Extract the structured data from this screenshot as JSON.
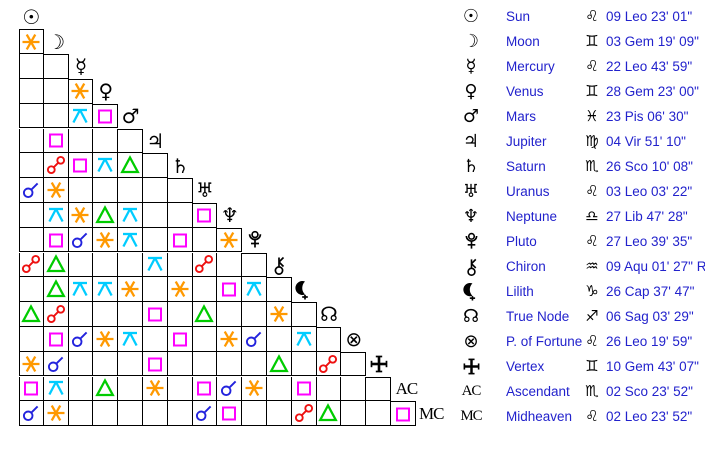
{
  "app": {
    "description": "Natal chart aspectarian (aspect grid) with planetary positions table"
  },
  "colors": {
    "background": "#ffffff",
    "grid_line": "#000000",
    "glyph_black": "#000000",
    "link_text": "#2222cc",
    "aspects": {
      "conjunction": "#2222dd",
      "opposition": "#ee1111",
      "square": "#ff00ff",
      "trine": "#00cc00",
      "sextile": "#ff9900",
      "quincunx": "#00ccff"
    }
  },
  "chart_data": {
    "type": "table",
    "title": "Aspect grid and planetary positions",
    "legend_position": "right",
    "bodies": [
      {
        "name": "Sun",
        "glyph": "☉",
        "sign": "Leo",
        "sign_glyph": "♌",
        "position": "09 Leo 23' 01\""
      },
      {
        "name": "Moon",
        "glyph": "☽",
        "sign": "Gem",
        "sign_glyph": "♊",
        "position": "03 Gem 19' 09\""
      },
      {
        "name": "Mercury",
        "glyph": "☿",
        "sign": "Leo",
        "sign_glyph": "♌",
        "position": "22 Leo 43' 59\""
      },
      {
        "name": "Venus",
        "glyph": "♀",
        "sign": "Gem",
        "sign_glyph": "♊",
        "position": "28 Gem 23' 00\""
      },
      {
        "name": "Mars",
        "glyph": "♂",
        "sign": "Pis",
        "sign_glyph": "♓",
        "position": "23 Pis 06' 30\""
      },
      {
        "name": "Jupiter",
        "glyph": "♃",
        "sign": "Vir",
        "sign_glyph": "♍",
        "position": "04 Vir 51' 10\""
      },
      {
        "name": "Saturn",
        "glyph": "♄",
        "sign": "Sco",
        "sign_glyph": "♏",
        "position": "26 Sco 10' 08\""
      },
      {
        "name": "Uranus",
        "glyph": "♅",
        "sign": "Leo",
        "sign_glyph": "♌",
        "position": "03 Leo 03' 22\""
      },
      {
        "name": "Neptune",
        "glyph": "♆",
        "sign": "Lib",
        "sign_glyph": "♎",
        "position": "27 Lib 47' 28\""
      },
      {
        "name": "Pluto",
        "glyph": "svg:pluto",
        "sign": "Leo",
        "sign_glyph": "♌",
        "position": "27 Leo 39' 35\""
      },
      {
        "name": "Chiron",
        "glyph": "svg:chiron",
        "sign": "Aqu",
        "sign_glyph": "♒",
        "position": "09 Aqu 01' 27\" R"
      },
      {
        "name": "Lilith",
        "glyph": "svg:lilith",
        "sign": "Cap",
        "sign_glyph": "♑",
        "position": "26 Cap 37' 47\""
      },
      {
        "name": "True Node",
        "glyph": "☊",
        "sign": "Sag",
        "sign_glyph": "♐",
        "position": "06 Sag 03' 29\""
      },
      {
        "name": "P. of Fortune",
        "glyph": "⊗",
        "sign": "Leo",
        "sign_glyph": "♌",
        "position": "26 Leo 19' 59\""
      },
      {
        "name": "Vertex",
        "glyph": "svg:vertex",
        "sign": "Gem",
        "sign_glyph": "♊",
        "position": "10 Gem 43' 07\""
      },
      {
        "name": "Ascendant",
        "glyph": "AC",
        "sign": "Sco",
        "sign_glyph": "♏",
        "position": "02 Sco 23' 52\""
      },
      {
        "name": "Midheaven",
        "glyph": "MC",
        "sign": "Leo",
        "sign_glyph": "♌",
        "position": "02 Leo 23' 52\""
      }
    ],
    "aspects": [
      {
        "row": 1,
        "col": 0,
        "aspect": "sextile"
      },
      {
        "row": 3,
        "col": 2,
        "aspect": "sextile"
      },
      {
        "row": 4,
        "col": 2,
        "aspect": "quincunx"
      },
      {
        "row": 4,
        "col": 3,
        "aspect": "square"
      },
      {
        "row": 5,
        "col": 1,
        "aspect": "square"
      },
      {
        "row": 6,
        "col": 1,
        "aspect": "opposition"
      },
      {
        "row": 6,
        "col": 2,
        "aspect": "square"
      },
      {
        "row": 6,
        "col": 3,
        "aspect": "quincunx"
      },
      {
        "row": 6,
        "col": 4,
        "aspect": "trine"
      },
      {
        "row": 7,
        "col": 0,
        "aspect": "conjunction"
      },
      {
        "row": 7,
        "col": 1,
        "aspect": "sextile"
      },
      {
        "row": 8,
        "col": 1,
        "aspect": "quincunx"
      },
      {
        "row": 8,
        "col": 2,
        "aspect": "sextile"
      },
      {
        "row": 8,
        "col": 3,
        "aspect": "trine"
      },
      {
        "row": 8,
        "col": 4,
        "aspect": "quincunx"
      },
      {
        "row": 8,
        "col": 7,
        "aspect": "square"
      },
      {
        "row": 9,
        "col": 1,
        "aspect": "square"
      },
      {
        "row": 9,
        "col": 2,
        "aspect": "conjunction"
      },
      {
        "row": 9,
        "col": 3,
        "aspect": "sextile"
      },
      {
        "row": 9,
        "col": 4,
        "aspect": "quincunx"
      },
      {
        "row": 9,
        "col": 6,
        "aspect": "square"
      },
      {
        "row": 9,
        "col": 8,
        "aspect": "sextile"
      },
      {
        "row": 10,
        "col": 0,
        "aspect": "opposition"
      },
      {
        "row": 10,
        "col": 1,
        "aspect": "trine"
      },
      {
        "row": 10,
        "col": 5,
        "aspect": "quincunx"
      },
      {
        "row": 10,
        "col": 7,
        "aspect": "opposition"
      },
      {
        "row": 11,
        "col": 1,
        "aspect": "trine"
      },
      {
        "row": 11,
        "col": 2,
        "aspect": "quincunx"
      },
      {
        "row": 11,
        "col": 3,
        "aspect": "quincunx"
      },
      {
        "row": 11,
        "col": 4,
        "aspect": "sextile"
      },
      {
        "row": 11,
        "col": 6,
        "aspect": "sextile"
      },
      {
        "row": 11,
        "col": 8,
        "aspect": "square"
      },
      {
        "row": 11,
        "col": 9,
        "aspect": "quincunx"
      },
      {
        "row": 12,
        "col": 0,
        "aspect": "trine"
      },
      {
        "row": 12,
        "col": 1,
        "aspect": "opposition"
      },
      {
        "row": 12,
        "col": 5,
        "aspect": "square"
      },
      {
        "row": 12,
        "col": 7,
        "aspect": "trine"
      },
      {
        "row": 12,
        "col": 10,
        "aspect": "sextile"
      },
      {
        "row": 13,
        "col": 1,
        "aspect": "square"
      },
      {
        "row": 13,
        "col": 2,
        "aspect": "conjunction"
      },
      {
        "row": 13,
        "col": 3,
        "aspect": "sextile"
      },
      {
        "row": 13,
        "col": 4,
        "aspect": "quincunx"
      },
      {
        "row": 13,
        "col": 6,
        "aspect": "square"
      },
      {
        "row": 13,
        "col": 8,
        "aspect": "sextile"
      },
      {
        "row": 13,
        "col": 9,
        "aspect": "conjunction"
      },
      {
        "row": 13,
        "col": 11,
        "aspect": "quincunx"
      },
      {
        "row": 14,
        "col": 0,
        "aspect": "sextile"
      },
      {
        "row": 14,
        "col": 1,
        "aspect": "conjunction"
      },
      {
        "row": 14,
        "col": 5,
        "aspect": "square"
      },
      {
        "row": 14,
        "col": 10,
        "aspect": "trine"
      },
      {
        "row": 14,
        "col": 12,
        "aspect": "opposition"
      },
      {
        "row": 15,
        "col": 0,
        "aspect": "square"
      },
      {
        "row": 15,
        "col": 1,
        "aspect": "quincunx"
      },
      {
        "row": 15,
        "col": 3,
        "aspect": "trine"
      },
      {
        "row": 15,
        "col": 5,
        "aspect": "sextile"
      },
      {
        "row": 15,
        "col": 7,
        "aspect": "square"
      },
      {
        "row": 15,
        "col": 8,
        "aspect": "conjunction"
      },
      {
        "row": 15,
        "col": 9,
        "aspect": "sextile"
      },
      {
        "row": 15,
        "col": 11,
        "aspect": "square"
      },
      {
        "row": 16,
        "col": 0,
        "aspect": "conjunction"
      },
      {
        "row": 16,
        "col": 1,
        "aspect": "sextile"
      },
      {
        "row": 16,
        "col": 7,
        "aspect": "conjunction"
      },
      {
        "row": 16,
        "col": 8,
        "aspect": "square"
      },
      {
        "row": 16,
        "col": 11,
        "aspect": "opposition"
      },
      {
        "row": 16,
        "col": 12,
        "aspect": "trine"
      },
      {
        "row": 16,
        "col": 15,
        "aspect": "square"
      }
    ]
  }
}
